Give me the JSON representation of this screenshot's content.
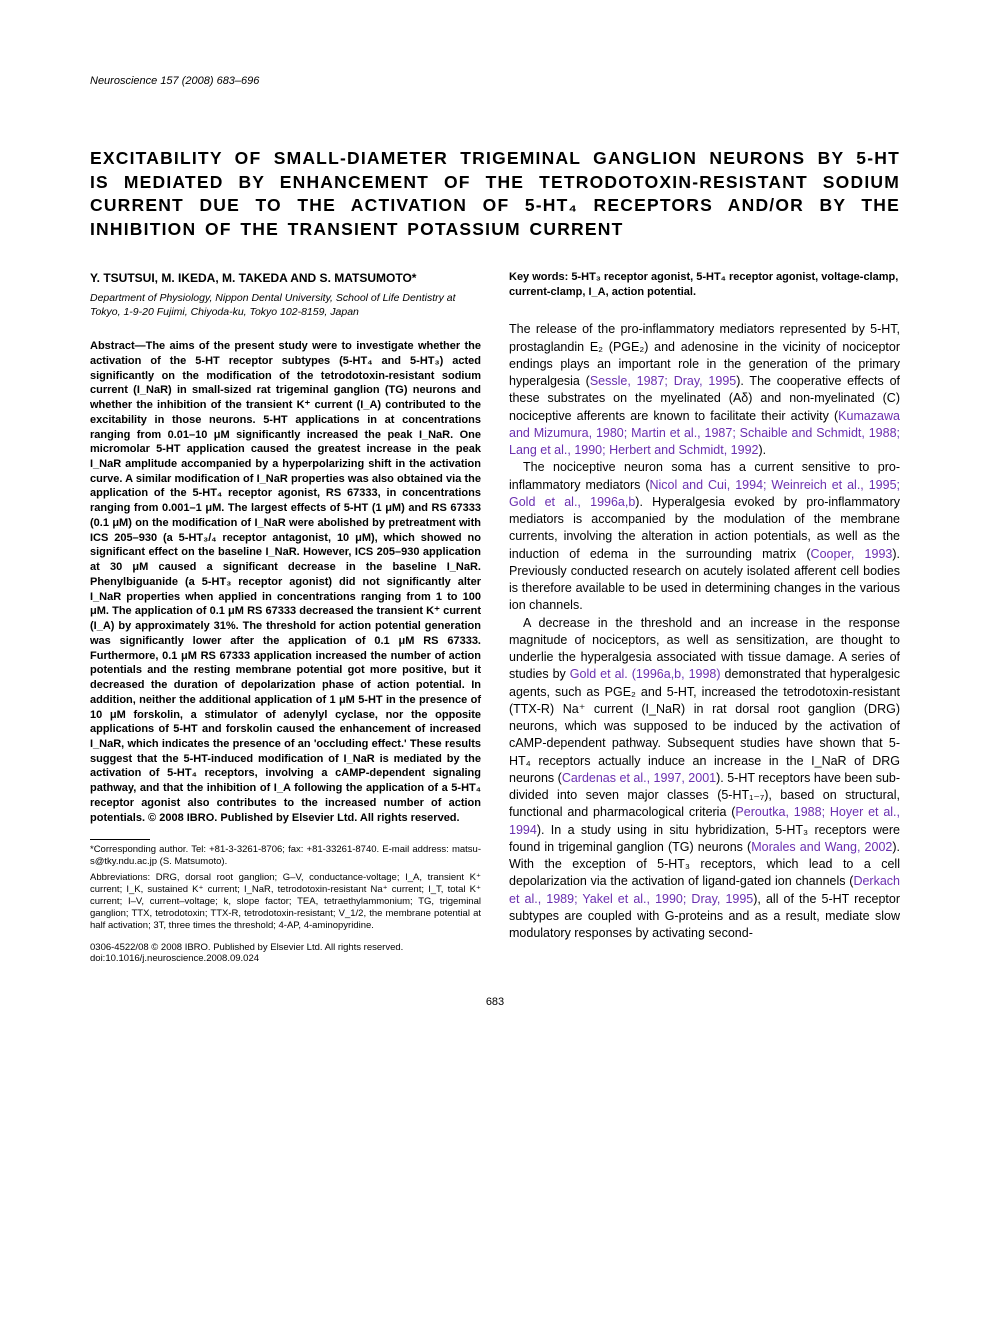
{
  "journal_ref": "Neuroscience 157 (2008) 683–696",
  "title": "EXCITABILITY OF SMALL-DIAMETER TRIGEMINAL GANGLION NEURONS BY 5-HT IS MEDIATED BY ENHANCEMENT OF THE TETRODOTOXIN-RESISTANT SODIUM CURRENT DUE TO THE ACTIVATION OF 5-HT₄ RECEPTORS AND/OR BY THE INHIBITION OF THE TRANSIENT POTASSIUM CURRENT",
  "authors": "Y. TSUTSUI, M. IKEDA, M. TAKEDA AND S. MATSUMOTO*",
  "affiliation": "Department of Physiology, Nippon Dental University, School of Life Dentistry at Tokyo, 1-9-20 Fujimi, Chiyoda-ku, Tokyo 102-8159, Japan",
  "abstract": "Abstract—The aims of the present study were to investigate whether the activation of the 5-HT receptor subtypes (5-HT₄ and 5-HT₃) acted significantly on the modification of the tetrodotoxin-resistant sodium current (I_NaR) in small-sized rat trigeminal ganglion (TG) neurons and whether the inhibition of the transient K⁺ current (I_A) contributed to the excitability in those neurons. 5-HT applications in at concentrations ranging from 0.01–10 μM significantly increased the peak I_NaR. One micromolar 5-HT application caused the greatest increase in the peak I_NaR amplitude accompanied by a hyperpolarizing shift in the activation curve. A similar modification of I_NaR properties was also obtained via the application of the 5-HT₄ receptor agonist, RS 67333, in concentrations ranging from 0.001–1 μM. The largest effects of 5-HT (1 μM) and RS 67333 (0.1 μM) on the modification of I_NaR were abolished by pretreatment with ICS 205–930 (a 5-HT₃/₄ receptor antagonist, 10 μM), which showed no significant effect on the baseline I_NaR. However, ICS 205–930 application at 30 μM caused a significant decrease in the baseline I_NaR. Phenylbiguanide (a 5-HT₃ receptor agonist) did not significantly alter I_NaR properties when applied in concentrations ranging from 1 to 100 μM. The application of 0.1 μM RS 67333 decreased the transient K⁺ current (I_A) by approximately 31%. The threshold for action potential generation was significantly lower after the application of 0.1 μM RS 67333. Furthermore, 0.1 μM RS 67333 application increased the number of action potentials and the resting membrane potential got more positive, but it decreased the duration of depolarization phase of action potential. In addition, neither the additional application of 1 μM 5-HT in the presence of 10 μM forskolin, a stimulator of adenylyl cyclase, nor the opposite applications of 5-HT and forskolin caused the enhancement of increased I_NaR, which indicates the presence of an 'occluding effect.' These results suggest that the 5-HT-induced modification of I_NaR is mediated by the activation of 5-HT₄ receptors, involving a cAMP-dependent signaling pathway, and that the inhibition of I_A following the application of a 5-HT₄ receptor agonist also contributes to the increased number of action potentials. © 2008 IBRO. Published by Elsevier Ltd. All rights reserved.",
  "footnote_corresponding": "*Corresponding author. Tel: +81-3-3261-8706; fax: +81-33261-8740. E-mail address: matsu-s@tky.ndu.ac.jp (S. Matsumoto).",
  "footnote_abbrev": "Abbreviations: DRG, dorsal root ganglion; G–V, conductance-voltage; I_A, transient K⁺ current; I_K, sustained K⁺ current; I_NaR, tetrodotoxin-resistant Na⁺ current; I_T, total K⁺ current; I–V, current–voltage; k, slope factor; TEA, tetraethylammonium; TG, trigeminal ganglion; TTX, tetrodotoxin; TTX-R, tetrodotoxin-resistant; V_1/2, the membrane potential at half activation; 3T, three times the threshold; 4-AP, 4-aminopyridine.",
  "copyright_line": "0306-4522/08 © 2008 IBRO. Published by Elsevier Ltd. All rights reserved.",
  "doi_line": "doi:10.1016/j.neuroscience.2008.09.024",
  "keywords": "Key words: 5-HT₃ receptor agonist, 5-HT₄ receptor agonist, voltage-clamp, current-clamp, I_A, action potential.",
  "body": {
    "p1_a": "The release of the pro-inflammatory mediators represented by 5-HT, prostaglandin E₂ (PGE₂) and adenosine in the vicinity of nociceptor endings plays an important role in the generation of the primary hyperalgesia (",
    "p1_ref1": "Sessle, 1987; Dray, 1995",
    "p1_b": "). The cooperative effects of these substrates on the myelinated (Aδ) and non-myelinated (C) nociceptive afferents are known to facilitate their activity (",
    "p1_ref2": "Kumazawa and Mizumura, 1980; Martin et al., 1987; Schaible and Schmidt, 1988; Lang et al., 1990; Herbert and Schmidt, 1992",
    "p1_c": ").",
    "p2_a": "The nociceptive neuron soma has a current sensitive to pro-inflammatory mediators (",
    "p2_ref1": "Nicol and Cui, 1994; Weinreich et al., 1995; Gold et al., 1996a,b",
    "p2_b": "). Hyperalgesia evoked by pro-inflammatory mediators is accompanied by the modulation of the membrane currents, involving the alteration in action potentials, as well as the induction of edema in the surrounding matrix (",
    "p2_ref2": "Cooper, 1993",
    "p2_c": "). Previously conducted research on acutely isolated afferent cell bodies is therefore available to be used in determining changes in the various ion channels.",
    "p3_a": "A decrease in the threshold and an increase in the response magnitude of nociceptors, as well as sensitization, are thought to underlie the hyperalgesia associated with tissue damage. A series of studies by ",
    "p3_ref1": "Gold et al. (1996a,b, 1998)",
    "p3_b": " demonstrated that hyperalgesic agents, such as PGE₂ and 5-HT, increased the tetrodotoxin-resistant (TTX-R) Na⁺ current (I_NaR) in rat dorsal root ganglion (DRG) neurons, which was supposed to be induced by the activation of cAMP-dependent pathway. Subsequent studies have shown that 5-HT₄ receptors actually induce an increase in the I_NaR of DRG neurons (",
    "p3_ref2": "Cardenas et al., 1997, 2001",
    "p3_c": "). 5-HT receptors have been sub-divided into seven major classes (5-HT₁₋₇), based on structural, functional and pharmacological criteria (",
    "p3_ref3": "Peroutka, 1988; Hoyer et al., 1994",
    "p3_d": "). In a study using in situ hybridization, 5-HT₃ receptors were found in trigeminal ganglion (TG) neurons (",
    "p3_ref4": "Morales and Wang, 2002",
    "p3_e": "). With the exception of 5-HT₃ receptors, which lead to a cell depolarization via the activation of ligand-gated ion channels (",
    "p3_ref5": "Derkach et al., 1989; Yakel et al., 1990; Dray, 1995",
    "p3_f": "), all of the 5-HT receptor subtypes are coupled with G-proteins and as a result, mediate slow modulatory responses by activating second-"
  },
  "page_number": "683",
  "colors": {
    "text": "#000000",
    "ref": "#6a2fb0",
    "background": "#ffffff"
  },
  "typography": {
    "body_pt": 12.5,
    "title_pt": 17.5,
    "abstract_pt": 11,
    "footnote_pt": 9.5,
    "journal_pt": 11
  }
}
